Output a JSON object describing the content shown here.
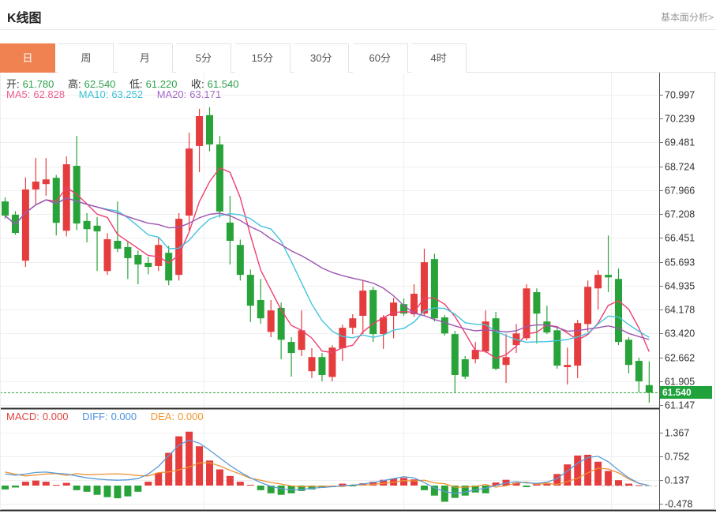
{
  "header": {
    "title": "K线图",
    "analysis_link": "基本面分析>"
  },
  "tabs": [
    {
      "label": "日",
      "active": true
    },
    {
      "label": "周",
      "active": false
    },
    {
      "label": "月",
      "active": false
    },
    {
      "label": "5分",
      "active": false
    },
    {
      "label": "15分",
      "active": false
    },
    {
      "label": "30分",
      "active": false
    },
    {
      "label": "60分",
      "active": false
    },
    {
      "label": "4时",
      "active": false
    }
  ],
  "legend": {
    "open_label": "开:",
    "open": "61.780",
    "high_label": "高:",
    "high": "62.540",
    "low_label": "低:",
    "low": "61.220",
    "close_label": "收:",
    "close": "61.540",
    "ma5_label": "MA5:",
    "ma5": "62.828",
    "ma10_label": "MA10:",
    "ma10": "63.252",
    "ma20_label": "MA20:",
    "ma20": "63.171",
    "macd_label": "MACD:",
    "macd": "0.000",
    "diff_label": "DIFF:",
    "diff": "0.000",
    "dea_label": "DEA:",
    "dea": "0.000"
  },
  "price_badge": "61.540",
  "chart_data": {
    "type": "candlestick+macd",
    "title": "K线图 日线",
    "y_axis_main": [
      "70.997",
      "70.239",
      "69.481",
      "68.724",
      "67.966",
      "67.208",
      "66.451",
      "65.693",
      "64.935",
      "64.178",
      "63.420",
      "62.662",
      "61.905",
      "61.147"
    ],
    "y_axis_macd": [
      "1.367",
      "0.752",
      "0.137",
      "-0.478"
    ],
    "last_close": 61.54,
    "candles": [
      [
        67.61,
        67.74,
        67.06,
        67.16
      ],
      [
        67.19,
        67.3,
        66.55,
        66.61
      ],
      [
        65.73,
        68.37,
        65.53,
        67.99
      ],
      [
        67.99,
        68.99,
        67.49,
        68.24
      ],
      [
        68.16,
        68.99,
        67.79,
        68.31
      ],
      [
        68.36,
        68.45,
        66.53,
        66.93
      ],
      [
        66.68,
        69.04,
        66.5,
        68.79
      ],
      [
        68.74,
        69.69,
        66.7,
        66.91
      ],
      [
        66.99,
        67.24,
        66.31,
        66.73
      ],
      [
        66.84,
        67.11,
        65.4,
        66.66
      ],
      [
        65.4,
        66.6,
        65.28,
        66.41
      ],
      [
        66.36,
        67.61,
        66.0,
        66.11
      ],
      [
        66.16,
        66.35,
        65.15,
        65.81
      ],
      [
        65.91,
        66.05,
        64.98,
        65.61
      ],
      [
        65.66,
        65.85,
        65.3,
        65.53
      ],
      [
        65.56,
        66.45,
        65.4,
        66.23
      ],
      [
        65.98,
        66.2,
        64.95,
        65.1
      ],
      [
        65.28,
        67.24,
        65.1,
        67.06
      ],
      [
        67.16,
        69.79,
        66.68,
        69.29
      ],
      [
        69.37,
        70.55,
        68.54,
        70.32
      ],
      [
        70.35,
        70.6,
        69.2,
        69.42
      ],
      [
        69.42,
        69.69,
        67.1,
        67.29
      ],
      [
        66.94,
        67.79,
        65.61,
        66.36
      ],
      [
        66.23,
        66.4,
        65.1,
        65.28
      ],
      [
        65.28,
        65.45,
        63.78,
        64.3
      ],
      [
        64.48,
        65.15,
        63.73,
        63.9
      ],
      [
        63.47,
        64.48,
        63.3,
        64.15
      ],
      [
        64.23,
        64.4,
        62.6,
        63.22
      ],
      [
        63.15,
        63.3,
        62.05,
        62.8
      ],
      [
        62.9,
        64.15,
        62.7,
        63.52
      ],
      [
        62.22,
        62.95,
        62.0,
        62.67
      ],
      [
        62.67,
        62.8,
        61.9,
        62.1
      ],
      [
        62.04,
        63.05,
        61.9,
        62.97
      ],
      [
        62.95,
        63.7,
        62.55,
        63.6
      ],
      [
        63.6,
        64.03,
        63.4,
        63.9
      ],
      [
        63.98,
        65.1,
        63.4,
        64.78
      ],
      [
        64.8,
        64.9,
        63.15,
        63.4
      ],
      [
        63.4,
        64.0,
        62.93,
        63.93
      ],
      [
        63.98,
        64.55,
        63.27,
        64.4
      ],
      [
        64.35,
        64.53,
        63.98,
        64.05
      ],
      [
        64.03,
        64.98,
        63.95,
        64.68
      ],
      [
        64.05,
        66.11,
        64.0,
        65.68
      ],
      [
        65.78,
        65.95,
        63.8,
        63.9
      ],
      [
        63.93,
        64.0,
        63.35,
        63.42
      ],
      [
        63.4,
        63.5,
        61.55,
        62.1
      ],
      [
        62.6,
        62.7,
        61.97,
        62.05
      ],
      [
        62.6,
        63.15,
        62.47,
        62.9
      ],
      [
        62.85,
        64.15,
        62.8,
        63.8
      ],
      [
        63.9,
        64.1,
        62.25,
        62.3
      ],
      [
        62.42,
        63.4,
        61.85,
        62.67
      ],
      [
        63.05,
        63.72,
        62.8,
        63.42
      ],
      [
        63.27,
        64.98,
        63.2,
        64.85
      ],
      [
        64.73,
        64.85,
        63.1,
        64.05
      ],
      [
        63.8,
        64.3,
        63.4,
        63.45
      ],
      [
        63.52,
        63.6,
        62.3,
        62.4
      ],
      [
        62.35,
        62.97,
        61.8,
        62.42
      ],
      [
        62.4,
        63.85,
        62.0,
        63.75
      ],
      [
        63.72,
        65.1,
        63.47,
        64.9
      ],
      [
        64.85,
        65.43,
        64.18,
        65.28
      ],
      [
        65.28,
        66.53,
        64.73,
        65.2
      ],
      [
        65.15,
        65.48,
        63.05,
        63.15
      ],
      [
        63.22,
        63.3,
        62.15,
        62.42
      ],
      [
        62.55,
        62.65,
        61.55,
        61.9
      ],
      [
        61.78,
        62.54,
        61.22,
        61.54
      ]
    ],
    "macd_histogram": [
      -0.1,
      -0.05,
      0.1,
      0.13,
      0.1,
      0.02,
      0.07,
      -0.12,
      -0.16,
      -0.24,
      -0.3,
      -0.33,
      -0.28,
      -0.16,
      0.1,
      0.33,
      0.85,
      1.28,
      1.4,
      1.02,
      0.65,
      0.42,
      0.25,
      0.1,
      0.02,
      -0.12,
      -0.2,
      -0.24,
      -0.2,
      -0.14,
      -0.1,
      -0.06,
      -0.04,
      0.05,
      -0.02,
      0.06,
      0.1,
      0.15,
      0.18,
      0.2,
      0.16,
      -0.12,
      -0.26,
      -0.42,
      -0.32,
      -0.26,
      -0.18,
      -0.2,
      0.08,
      0.15,
      0.07,
      -0.04,
      0.05,
      0.07,
      0.3,
      0.55,
      0.78,
      0.8,
      0.62,
      0.38,
      0.14,
      0.05,
      0.01,
      0.0
    ],
    "diff_line": [
      0.3,
      0.27,
      0.3,
      0.34,
      0.35,
      0.32,
      0.3,
      0.25,
      0.2,
      0.17,
      0.15,
      0.14,
      0.15,
      0.18,
      0.3,
      0.5,
      0.78,
      1.05,
      1.18,
      1.1,
      0.92,
      0.72,
      0.52,
      0.35,
      0.2,
      0.08,
      -0.02,
      -0.08,
      -0.11,
      -0.1,
      -0.07,
      -0.05,
      -0.03,
      0.0,
      0.01,
      0.04,
      0.08,
      0.13,
      0.18,
      0.23,
      0.2,
      0.08,
      -0.06,
      -0.16,
      -0.2,
      -0.17,
      -0.11,
      -0.07,
      0.0,
      0.07,
      0.1,
      0.07,
      0.06,
      0.09,
      0.18,
      0.38,
      0.58,
      0.73,
      0.76,
      0.62,
      0.4,
      0.2,
      0.06,
      0.0
    ],
    "colors": {
      "up": "#e53c3e",
      "down": "#28a339",
      "ma5": "#ee3f6f",
      "ma10": "#45c4de",
      "ma20": "#9d55b0",
      "diff": "#5b9bd8",
      "dea": "#ee9230",
      "dotted_price_line": "#28a339",
      "badge_bg": "#1fa23c",
      "tab_active": "#ef8250",
      "grid": "#efefef"
    }
  }
}
